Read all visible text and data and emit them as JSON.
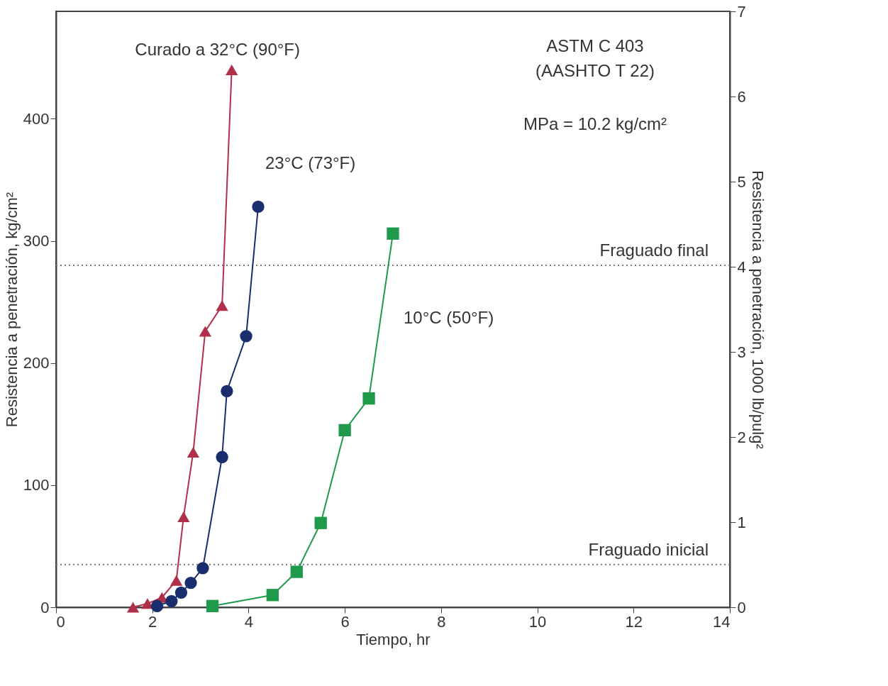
{
  "chart_data": {
    "type": "line",
    "xlabel": "Tiempo, hr",
    "ylabel": "Resistencia a penetración, kg/cm²",
    "y2label": "Resistencia a penetración, 1000 lb/pulg²",
    "xlim": [
      0,
      14
    ],
    "xticks": [
      0,
      2,
      4,
      6,
      8,
      10,
      12,
      14
    ],
    "ylim": [
      0,
      488
    ],
    "yticks": [
      0,
      100,
      200,
      300,
      400
    ],
    "y2lim": [
      0,
      7
    ],
    "y2ticks": [
      0,
      1,
      2,
      3,
      4,
      5,
      6,
      7
    ],
    "grid": false,
    "line_style": "solid",
    "series": [
      {
        "name": "Curado a 32°C (90°F)",
        "color": "#b0304a",
        "marker": "triangle",
        "x": [
          1.6,
          1.9,
          2.2,
          2.5,
          2.65,
          2.85,
          3.1,
          3.45,
          3.65
        ],
        "values": [
          0,
          3,
          8,
          22,
          74,
          127,
          226,
          247,
          440
        ]
      },
      {
        "name": "23°C (73°F)",
        "color": "#1a2e6e",
        "marker": "circle",
        "x": [
          2.1,
          2.4,
          2.6,
          2.8,
          3.05,
          3.45,
          3.55,
          3.95,
          4.2
        ],
        "values": [
          1,
          5,
          12,
          20,
          32,
          123,
          177,
          222,
          328
        ]
      },
      {
        "name": "10°C (50°F)",
        "color": "#1e9a4a",
        "marker": "square",
        "x": [
          3.25,
          4.5,
          5.0,
          5.5,
          6.0,
          6.5,
          7.0
        ],
        "values": [
          1,
          10,
          29,
          69,
          145,
          171,
          306
        ]
      }
    ],
    "ref_lines": [
      {
        "axis": "y",
        "value": 35,
        "label": "Fraguado inicial",
        "color": "#777777",
        "line_style": "dotted"
      },
      {
        "axis": "y",
        "value": 280,
        "label": "Fraguado final",
        "color": "#777777",
        "line_style": "dotted"
      }
    ],
    "annotations": [
      "ASTM C 403",
      "(AASHTO T 22)",
      "MPa = 10.2 kg/cm²"
    ]
  }
}
